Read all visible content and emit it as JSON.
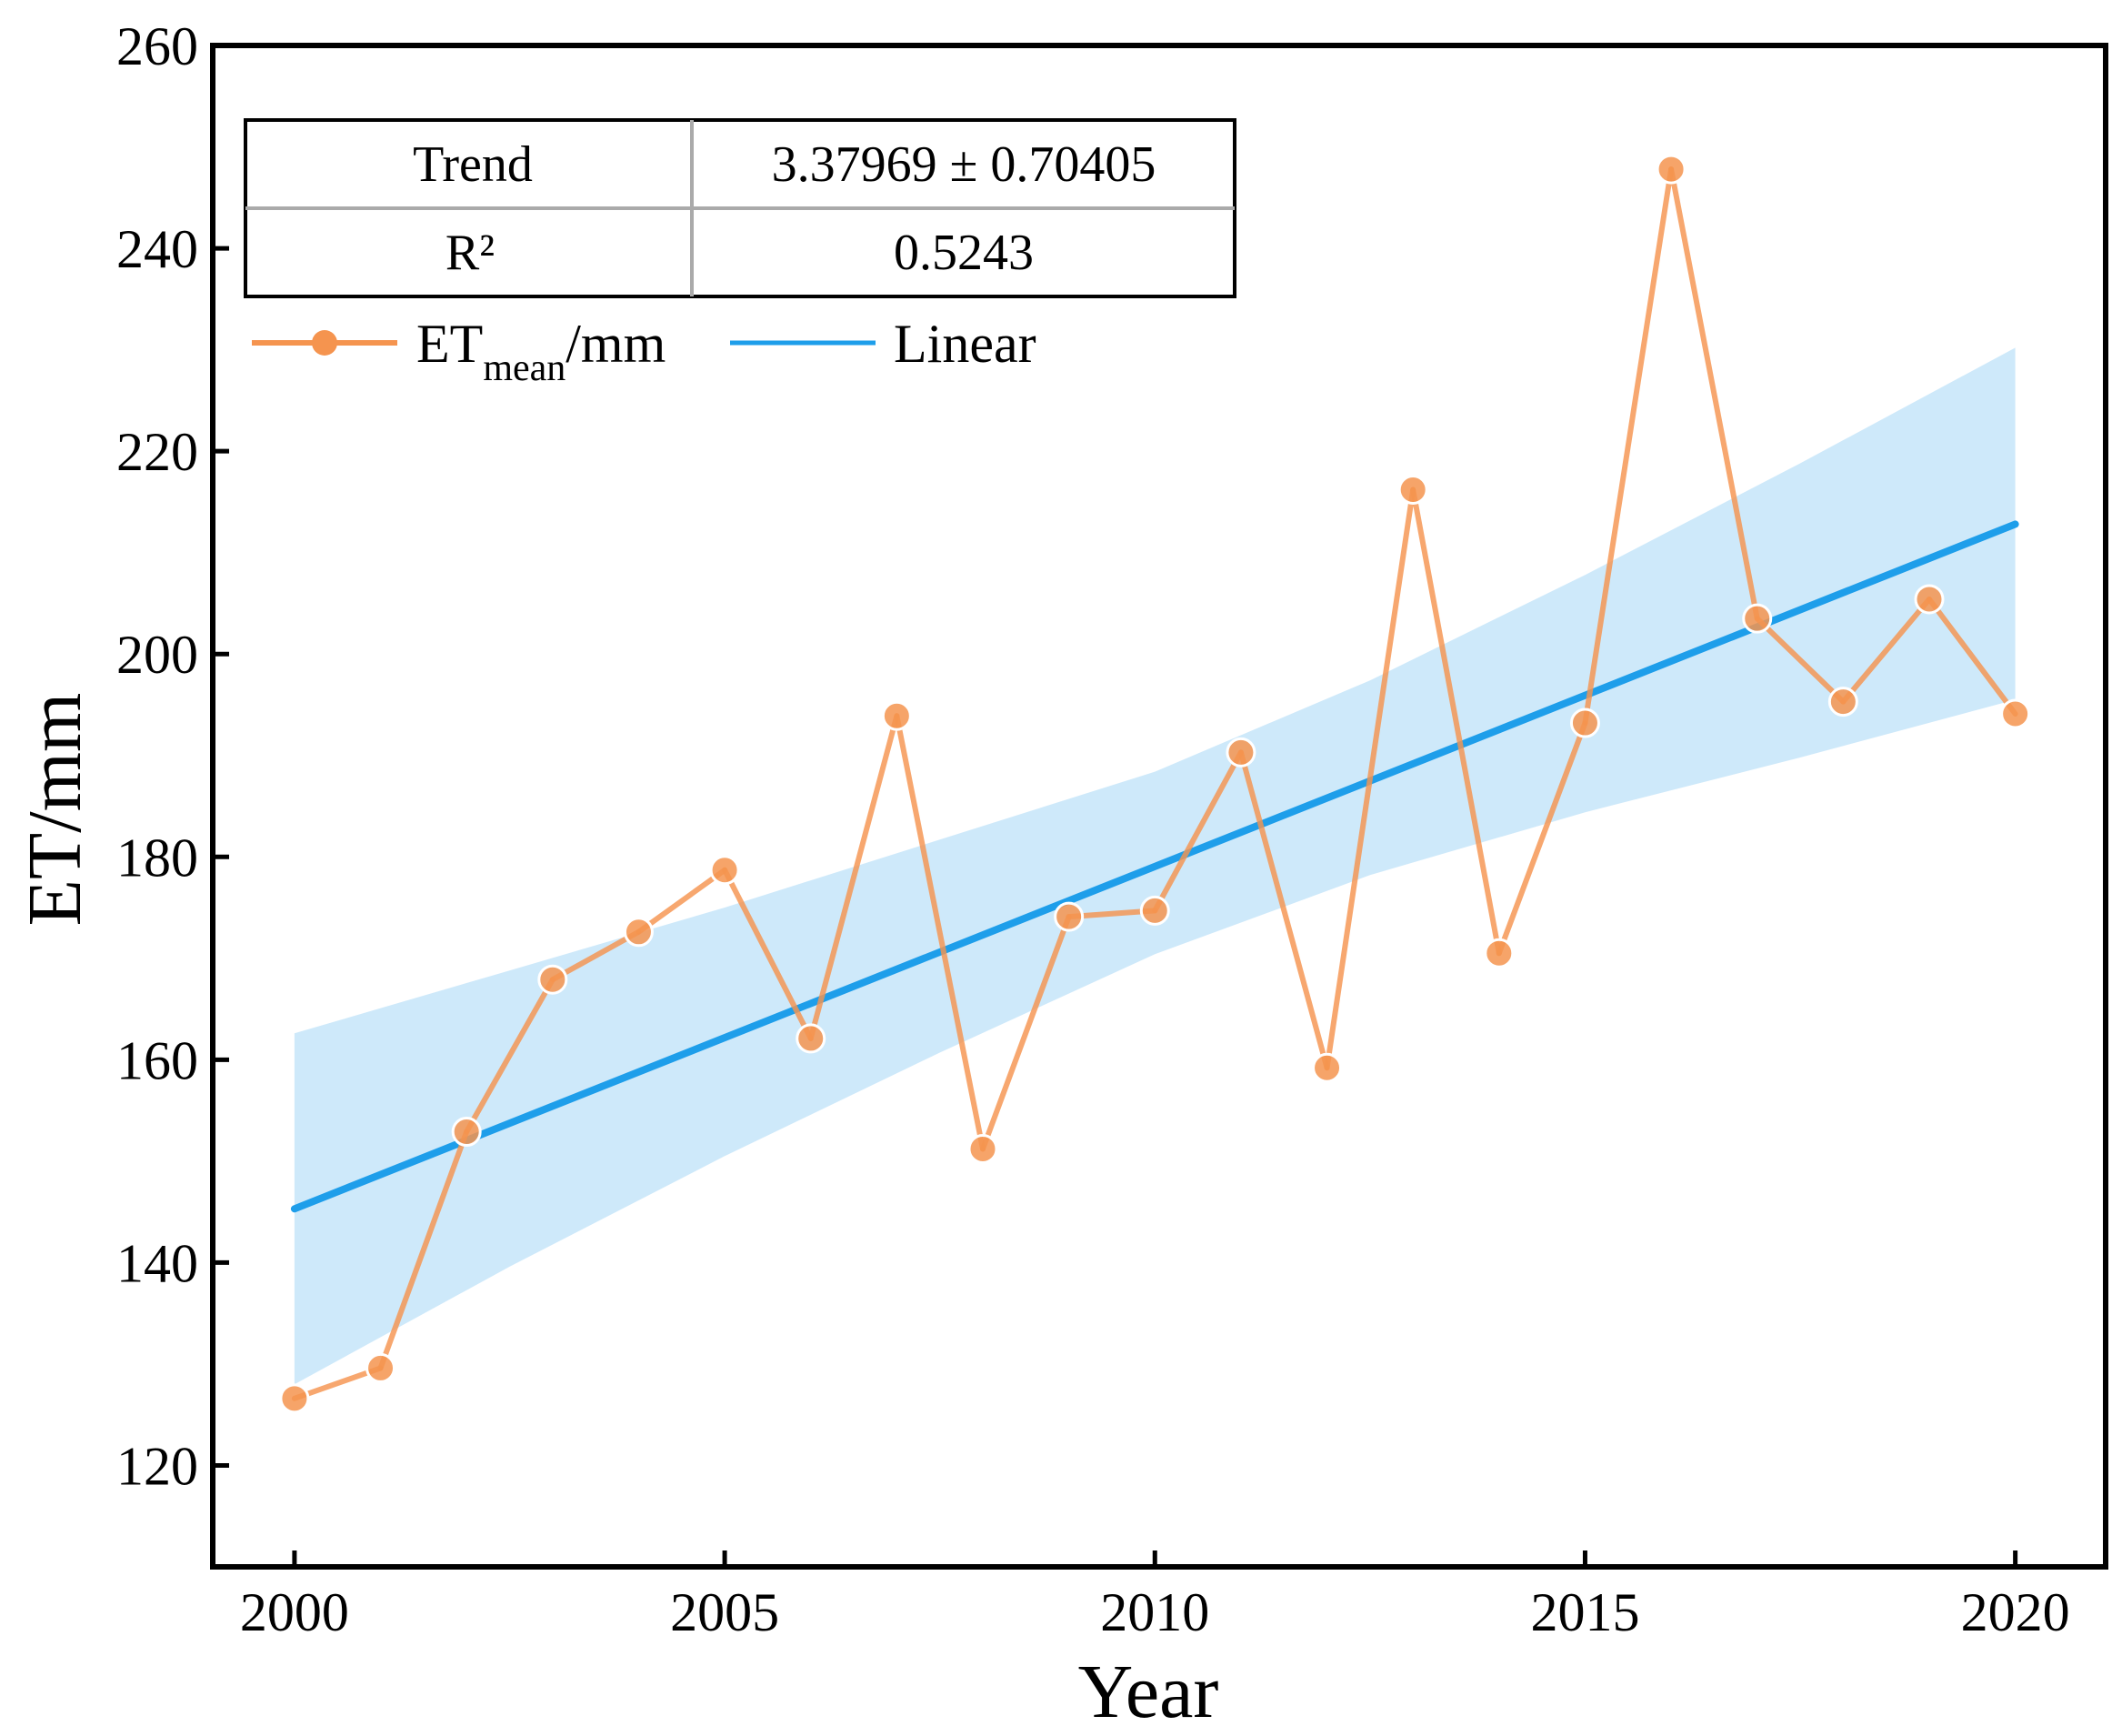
{
  "chart_data": {
    "type": "line",
    "title": "",
    "xlabel": "Year",
    "ylabel": "ET/mm",
    "xlim": [
      1999.05,
      2021.05
    ],
    "ylim": [
      110,
      260
    ],
    "x_ticks": [
      2000,
      2005,
      2010,
      2015,
      2020
    ],
    "y_ticks": [
      120,
      140,
      160,
      180,
      200,
      220,
      240,
      260
    ],
    "grid": false,
    "series": [
      {
        "name": "ET_mean/mm",
        "kind": "line-markers",
        "color": "#F5944F",
        "x": [
          2000,
          2001,
          2002,
          2003,
          2004,
          2005,
          2006,
          2007,
          2008,
          2009,
          2010,
          2011,
          2012,
          2013,
          2014,
          2015,
          2016,
          2017,
          2018,
          2019,
          2020
        ],
        "values": [
          126.6,
          129.6,
          152.9,
          167.9,
          172.6,
          178.7,
          162.1,
          193.9,
          151.2,
          174.1,
          174.7,
          190.3,
          159.2,
          216.2,
          170.5,
          193.2,
          247.8,
          203.5,
          195.3,
          205.4,
          194.1
        ]
      },
      {
        "name": "Linear",
        "kind": "trend",
        "color": "#1E9EEA",
        "x": [
          2000,
          2020
        ],
        "values": [
          145.3,
          212.8
        ]
      }
    ],
    "confidence_band": {
      "color": "#CBE8FA",
      "x": [
        2000,
        2002.5,
        2005,
        2007.5,
        2010,
        2012.5,
        2015,
        2017.5,
        2020
      ],
      "upper": [
        162.6,
        168.8,
        175.0,
        181.7,
        188.4,
        197.4,
        207.8,
        218.8,
        230.2
      ],
      "lower": [
        128.0,
        139.6,
        150.5,
        160.7,
        170.4,
        178.2,
        184.4,
        189.8,
        195.5
      ]
    },
    "legend": {
      "placement": "top-left",
      "entries": [
        {
          "label_main": "ET",
          "label_sub": "mean",
          "label_tail": "/mm",
          "kind": "line-marker",
          "color": "#F5944F"
        },
        {
          "label": "Linear",
          "kind": "line",
          "color": "#1E9EEA"
        }
      ]
    },
    "stats_table": {
      "placement": "top-left",
      "rows": [
        {
          "label": "Trend",
          "value": "3.37969 ± 0.70405"
        },
        {
          "label": "R²",
          "value": "0.5243"
        }
      ]
    }
  }
}
